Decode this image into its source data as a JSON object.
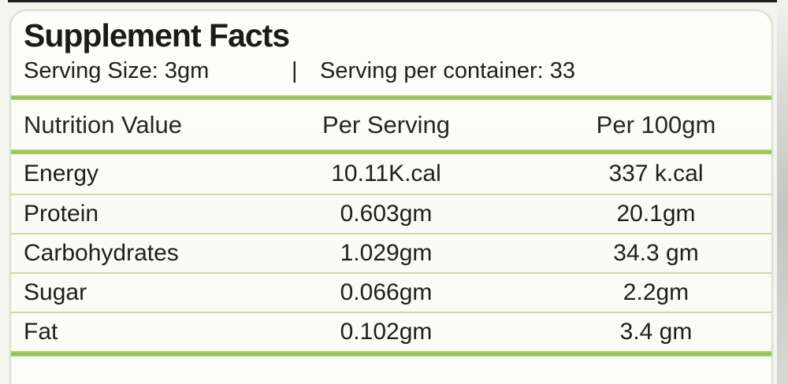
{
  "label": {
    "title": "Supplement Facts",
    "serving_size": "Serving Size: 3gm",
    "separator": "|",
    "servings_per_container": "Serving per container: 33"
  },
  "table": {
    "headers": [
      "Nutrition Value",
      "Per Serving",
      "Per 100gm"
    ],
    "rows": [
      {
        "name": "Energy",
        "per_serving": "10.11K.cal",
        "per_100gm": "337 k.cal"
      },
      {
        "name": "Protein",
        "per_serving": "0.603gm",
        "per_100gm": "20.1gm"
      },
      {
        "name": "Carbohydrates",
        "per_serving": "1.029gm",
        "per_100gm": "34.3 gm"
      },
      {
        "name": "Sugar",
        "per_serving": "0.066gm",
        "per_100gm": "2.2gm"
      },
      {
        "name": "Fat",
        "per_serving": "0.102gm",
        "per_100gm": "3.4 gm"
      }
    ]
  },
  "colors": {
    "accent_green": "#8fc04e",
    "separator_green": "#cadd9f",
    "text": "#1e1e1c",
    "border": "#d8ddc8"
  }
}
